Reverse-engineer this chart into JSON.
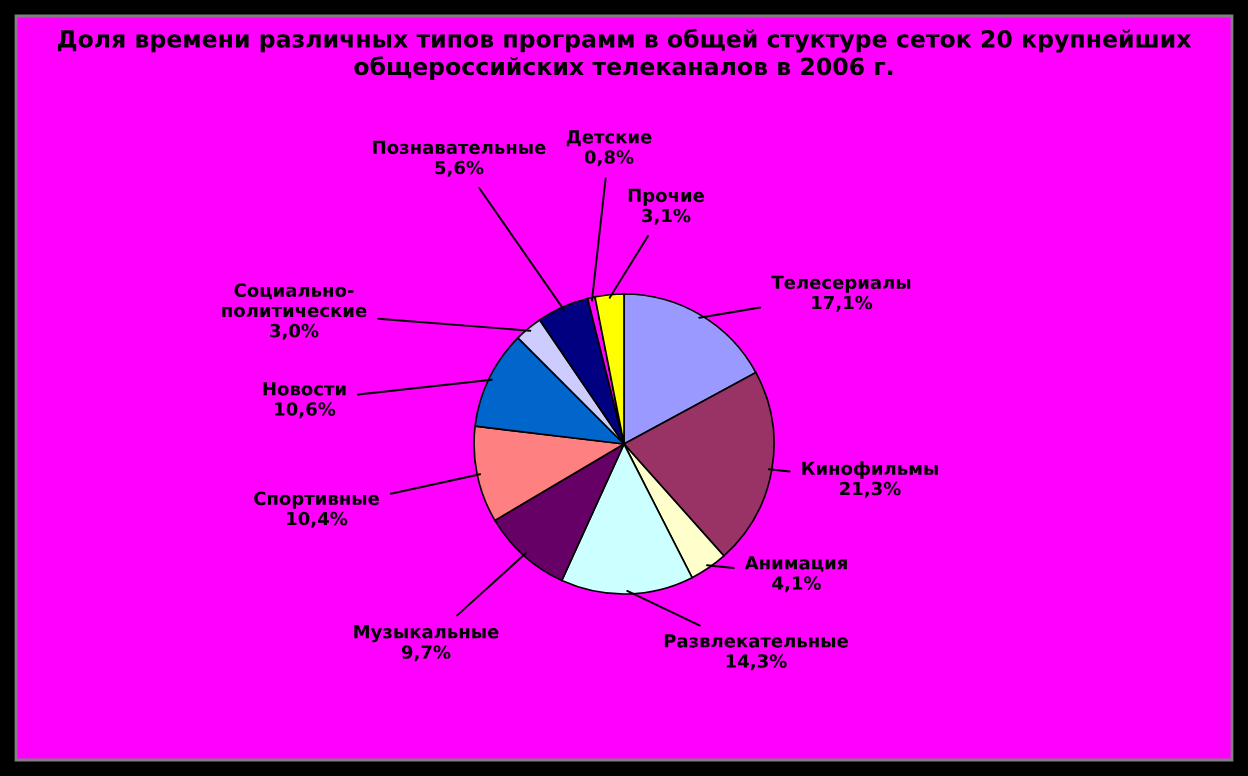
{
  "chart_data": {
    "type": "pie",
    "title": "Доля времени различных типов программ в общей стуктуре сеток 20 крупнейших общероссийских телеканалов в 2006 г.",
    "categories": [
      "Телесериалы",
      "Кинофильмы",
      "Анимация",
      "Развлекательные",
      "Музыкальные",
      "Спортивные",
      "Новости",
      "Социально-политические",
      "Познавательные",
      "Детские",
      "Прочие"
    ],
    "values": [
      17.1,
      21.3,
      4.1,
      14.3,
      9.7,
      10.4,
      10.6,
      3.0,
      5.6,
      0.8,
      3.1
    ],
    "value_labels": [
      "17,1%",
      "21,3%",
      "4,1%",
      "14,3%",
      "9,7%",
      "10,4%",
      "10,6%",
      "3,0%",
      "5,6%",
      "0,8%",
      "3,1%"
    ],
    "colors": [
      "#9999ff",
      "#993366",
      "#ffffcc",
      "#ccffff",
      "#660066",
      "#ff8080",
      "#0066cc",
      "#ccccff",
      "#000080",
      "#ff00ff",
      "#ffff00"
    ]
  }
}
